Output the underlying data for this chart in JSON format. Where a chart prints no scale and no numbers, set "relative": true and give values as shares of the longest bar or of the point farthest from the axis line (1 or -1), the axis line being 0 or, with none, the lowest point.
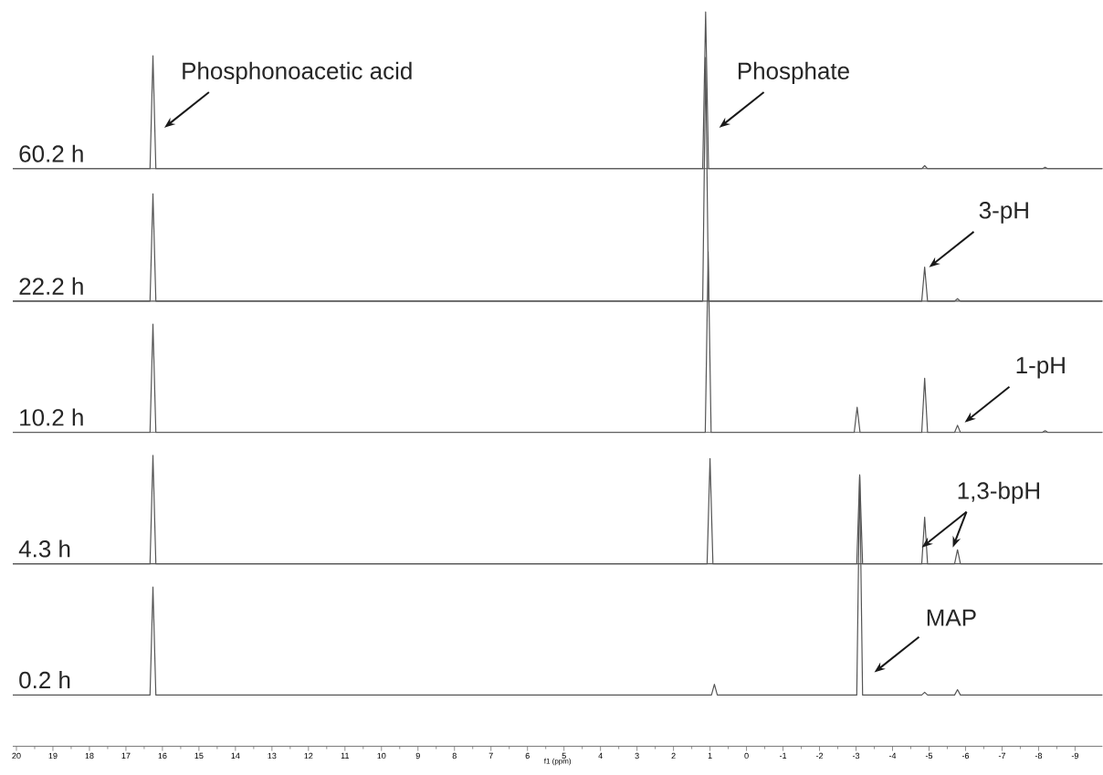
{
  "chart_data": [
    {
      "type": "line",
      "relative": true,
      "ylabel": "60.2 h",
      "color": "#555555",
      "xlim": [
        20.1,
        -9.75
      ],
      "tick_labels": false,
      "x": [
        20.1,
        16.34,
        16.26,
        16.18,
        1.2,
        1.12,
        1.04,
        -4.8,
        -4.88,
        -4.96,
        -8.1,
        -8.18,
        -8.26,
        -9.75
      ],
      "values": [
        0,
        0,
        0.72,
        0,
        0,
        1,
        0,
        0,
        0.02,
        0,
        0,
        0.01,
        0,
        0
      ],
      "annotations": [
        "Phosphonoacetic acid",
        "Phosphate"
      ]
    },
    {
      "type": "line",
      "relative": true,
      "ylabel": "22.2 h",
      "color": "#555555",
      "xlim": [
        20.1,
        -9.75
      ],
      "tick_labels": false,
      "x": [
        20.1,
        16.34,
        16.26,
        16.18,
        1.2,
        1.12,
        1.04,
        -4.8,
        -4.88,
        -4.96,
        -5.7,
        -5.78,
        -5.86,
        -9.75
      ],
      "values": [
        0,
        0,
        0.44,
        0,
        0,
        1,
        0,
        0,
        0.14,
        0,
        0,
        0.01,
        0,
        0
      ],
      "annotations": [
        "3-pH"
      ]
    },
    {
      "type": "line",
      "relative": true,
      "ylabel": "10.2 h",
      "color": "#555555",
      "xlim": [
        20.1,
        -9.75
      ],
      "tick_labels": false,
      "x": [
        20.1,
        16.34,
        16.26,
        16.18,
        1.13,
        1.05,
        0.97,
        -2.95,
        -3.03,
        -3.11,
        -4.8,
        -4.88,
        -4.96,
        -5.7,
        -5.78,
        -5.86,
        -8.1,
        -8.18,
        -8.26,
        -9.75
      ],
      "values": [
        0,
        0,
        0.6,
        0,
        0,
        1,
        0,
        0,
        0.14,
        0,
        0,
        0.3,
        0,
        0,
        0.04,
        0,
        0,
        0.01,
        0,
        0
      ],
      "annotations": [
        "1-pH"
      ]
    },
    {
      "type": "line",
      "relative": true,
      "ylabel": "4.3 h",
      "color": "#555555",
      "xlim": [
        20.1,
        -9.75
      ],
      "tick_labels": false,
      "x": [
        20.1,
        16.34,
        16.26,
        16.18,
        1.08,
        1.0,
        0.92,
        -3.02,
        -3.1,
        -3.18,
        -4.8,
        -4.88,
        -4.96,
        -5.7,
        -5.78,
        -5.86,
        -9.75
      ],
      "values": [
        0,
        0,
        1,
        0,
        0,
        0.97,
        0,
        0,
        0.82,
        0,
        0,
        0.43,
        0,
        0,
        0.13,
        0,
        0
      ],
      "annotations": [
        "1,3-bpH"
      ]
    },
    {
      "type": "line",
      "relative": true,
      "ylabel": "0.2 h",
      "xlabel": "f1 (ppm)",
      "color": "#555555",
      "xlim": [
        20.1,
        -9.75
      ],
      "xticks": [
        20,
        19,
        18,
        17,
        16,
        15,
        14,
        13,
        12,
        11,
        10,
        9,
        8,
        7,
        6,
        5,
        4,
        3,
        2,
        1,
        0,
        -1,
        -2,
        -3,
        -4,
        -5,
        -6,
        -7,
        -8,
        -9
      ],
      "x": [
        20.1,
        16.34,
        16.26,
        16.18,
        0.96,
        0.88,
        0.8,
        -3.02,
        -3.1,
        -3.18,
        -4.8,
        -4.88,
        -4.96,
        -5.7,
        -5.78,
        -5.86,
        -9.75
      ],
      "values": [
        0.19,
        0.19,
        0.59,
        0.19,
        0.19,
        0.23,
        0.19,
        0.19,
        1,
        0.19,
        0.19,
        0.2,
        0.19,
        0.19,
        0.21,
        0.19,
        0.19
      ],
      "annotations": [
        "MAP"
      ]
    }
  ]
}
